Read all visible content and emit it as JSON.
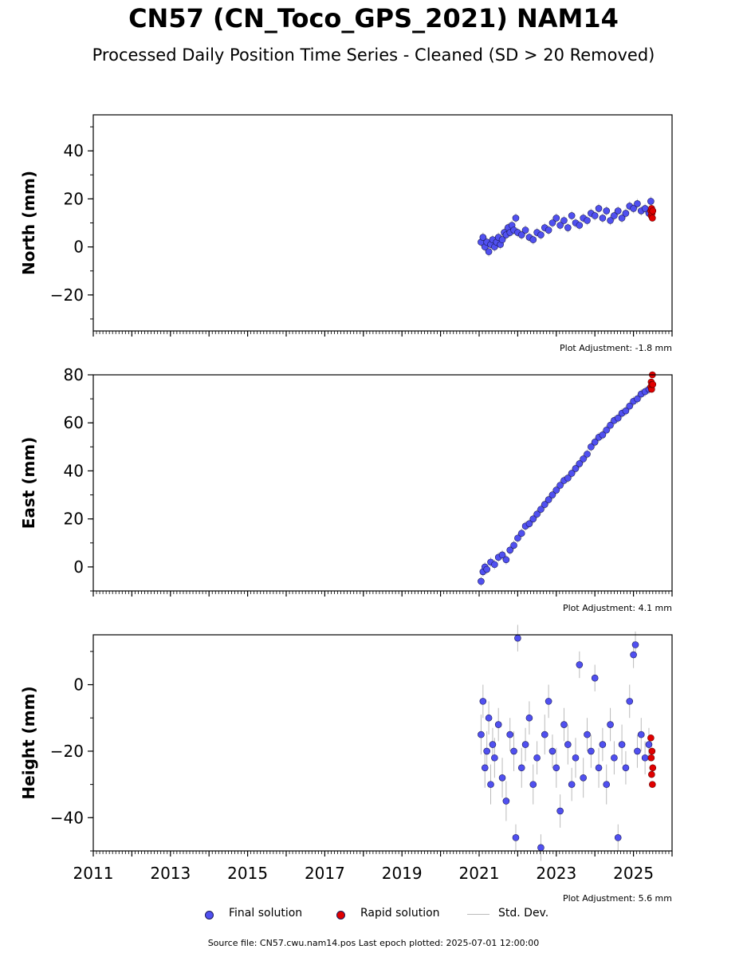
{
  "title": "CN57 (CN_Toco_GPS_2021) NAM14",
  "subtitle": "Processed Daily Position Time Series - Cleaned (SD > 20 Removed)",
  "legend": {
    "final": "Final solution",
    "rapid": "Rapid solution",
    "std": "Std. Dev."
  },
  "footer": "Source file: CN57.cwu.nam14.pos  Last epoch plotted: 2025-07-01 12:00:00",
  "colors": {
    "final_fill": "#5050f0",
    "rapid_fill": "#e00000",
    "std_line": "#bbbbbb",
    "marker_edge": "#1a1a5a"
  },
  "chart_data": [
    {
      "type": "scatter",
      "ylabel": "North (mm)",
      "xlim": [
        2011.0,
        2026.0
      ],
      "ylim": [
        -35,
        55
      ],
      "yticks": [
        -20,
        0,
        20,
        40
      ],
      "xticks": [
        2011,
        2013,
        2015,
        2017,
        2019,
        2021,
        2023,
        2025
      ],
      "show_xticklabels": false,
      "adjustment": "Plot Adjustment: -1.8 mm",
      "final": {
        "x": [
          2021.05,
          2021.1,
          2021.15,
          2021.2,
          2021.25,
          2021.3,
          2021.35,
          2021.4,
          2021.45,
          2021.5,
          2021.55,
          2021.6,
          2021.65,
          2021.7,
          2021.75,
          2021.8,
          2021.85,
          2021.9,
          2021.95,
          2022.0,
          2022.1,
          2022.2,
          2022.3,
          2022.4,
          2022.5,
          2022.6,
          2022.7,
          2022.8,
          2022.9,
          2023.0,
          2023.1,
          2023.2,
          2023.3,
          2023.4,
          2023.5,
          2023.6,
          2023.7,
          2023.8,
          2023.9,
          2024.0,
          2024.1,
          2024.2,
          2024.3,
          2024.4,
          2024.5,
          2024.6,
          2024.7,
          2024.8,
          2024.9,
          2025.0,
          2025.1,
          2025.2,
          2025.3,
          2025.4,
          2025.45
        ],
        "y": [
          2,
          4,
          0,
          2,
          -2,
          1,
          3,
          0,
          2,
          4,
          1,
          3,
          6,
          5,
          8,
          6,
          9,
          7,
          12,
          6,
          5,
          7,
          4,
          3,
          6,
          5,
          8,
          7,
          10,
          12,
          9,
          11,
          8,
          13,
          10,
          9,
          12,
          11,
          14,
          13,
          16,
          12,
          15,
          11,
          13,
          15,
          12,
          14,
          17,
          16,
          18,
          15,
          16,
          14,
          19
        ],
        "std": [
          2,
          2,
          2,
          2,
          2,
          2,
          2,
          2,
          2,
          2,
          2,
          2,
          2,
          2,
          2,
          2,
          2,
          2,
          2,
          2,
          2,
          2,
          2,
          2,
          2,
          2,
          2,
          2,
          2,
          2,
          2,
          2,
          2,
          2,
          2,
          2,
          2,
          2,
          2,
          2,
          2,
          2,
          2,
          2,
          2,
          2,
          2,
          2,
          2,
          2,
          2,
          2,
          2,
          2,
          2
        ]
      },
      "rapid": {
        "x": [
          2025.45,
          2025.46,
          2025.47,
          2025.48,
          2025.49,
          2025.5
        ],
        "y": [
          15,
          13,
          16,
          14,
          12,
          15
        ]
      }
    },
    {
      "type": "scatter",
      "ylabel": "East (mm)",
      "xlim": [
        2011.0,
        2026.0
      ],
      "ylim": [
        -10,
        80
      ],
      "yticks": [
        0,
        20,
        40,
        60,
        80
      ],
      "xticks": [
        2011,
        2013,
        2015,
        2017,
        2019,
        2021,
        2023,
        2025
      ],
      "show_xticklabels": false,
      "adjustment": "Plot Adjustment: 4.1 mm",
      "final": {
        "x": [
          2021.05,
          2021.1,
          2021.15,
          2021.2,
          2021.3,
          2021.4,
          2021.5,
          2021.6,
          2021.7,
          2021.8,
          2021.9,
          2022.0,
          2022.1,
          2022.2,
          2022.3,
          2022.4,
          2022.5,
          2022.6,
          2022.7,
          2022.8,
          2022.9,
          2023.0,
          2023.1,
          2023.2,
          2023.3,
          2023.4,
          2023.5,
          2023.6,
          2023.7,
          2023.8,
          2023.9,
          2024.0,
          2024.1,
          2024.2,
          2024.3,
          2024.4,
          2024.5,
          2024.6,
          2024.7,
          2024.8,
          2024.9,
          2025.0,
          2025.1,
          2025.2,
          2025.3,
          2025.4
        ],
        "y": [
          -6,
          -2,
          0,
          -1,
          2,
          1,
          4,
          5,
          3,
          7,
          9,
          12,
          14,
          17,
          18,
          20,
          22,
          24,
          26,
          28,
          30,
          32,
          34,
          36,
          37,
          39,
          41,
          43,
          45,
          47,
          50,
          52,
          54,
          55,
          57,
          59,
          61,
          62,
          64,
          65,
          67,
          69,
          70,
          72,
          73,
          74
        ],
        "std": [
          2,
          2,
          2,
          2,
          2,
          2,
          2,
          2,
          2,
          2,
          2,
          2,
          2,
          2,
          2,
          2,
          2,
          2,
          2,
          2,
          2,
          2,
          2,
          2,
          2,
          2,
          2,
          2,
          2,
          2,
          2,
          2,
          2,
          2,
          2,
          2,
          2,
          2,
          2,
          2,
          2,
          2,
          2,
          2,
          2,
          2
        ]
      },
      "rapid": {
        "x": [
          2025.45,
          2025.46,
          2025.47,
          2025.48,
          2025.49,
          2025.5
        ],
        "y": [
          75,
          77,
          74,
          76,
          80,
          76
        ]
      }
    },
    {
      "type": "scatter",
      "ylabel": "Height (mm)",
      "xlim": [
        2011.0,
        2026.0
      ],
      "ylim": [
        -50,
        15
      ],
      "yticks": [
        -40,
        -20,
        0
      ],
      "xticks": [
        2011,
        2013,
        2015,
        2017,
        2019,
        2021,
        2023,
        2025
      ],
      "xticklabels": [
        "2011",
        "2013",
        "2015",
        "2017",
        "2019",
        "2021",
        "2023",
        "2025"
      ],
      "show_xticklabels": true,
      "adjustment": "Plot Adjustment: 5.6 mm",
      "final": {
        "x": [
          2021.05,
          2021.1,
          2021.15,
          2021.2,
          2021.25,
          2021.3,
          2021.35,
          2021.4,
          2021.5,
          2021.6,
          2021.7,
          2021.8,
          2021.9,
          2021.95,
          2022.0,
          2022.1,
          2022.2,
          2022.3,
          2022.4,
          2022.5,
          2022.6,
          2022.7,
          2022.8,
          2022.9,
          2023.0,
          2023.1,
          2023.2,
          2023.3,
          2023.4,
          2023.5,
          2023.6,
          2023.7,
          2023.8,
          2023.9,
          2024.0,
          2024.1,
          2024.2,
          2024.3,
          2024.4,
          2024.5,
          2024.6,
          2024.7,
          2024.8,
          2024.9,
          2025.0,
          2025.05,
          2025.1,
          2025.2,
          2025.3,
          2025.4
        ],
        "y": [
          -15,
          -5,
          -25,
          -20,
          -10,
          -30,
          -18,
          -22,
          -12,
          -28,
          -35,
          -15,
          -20,
          -46,
          14,
          -25,
          -18,
          -10,
          -30,
          -22,
          -49,
          -15,
          -5,
          -20,
          -25,
          -38,
          -12,
          -18,
          -30,
          -22,
          6,
          -28,
          -15,
          -20,
          2,
          -25,
          -18,
          -30,
          -12,
          -22,
          -46,
          -18,
          -25,
          -5,
          9,
          12,
          -20,
          -15,
          -22,
          -18
        ],
        "std": [
          6,
          5,
          6,
          6,
          5,
          6,
          5,
          6,
          5,
          6,
          6,
          5,
          6,
          4,
          4,
          6,
          5,
          5,
          6,
          5,
          4,
          6,
          5,
          5,
          6,
          5,
          5,
          6,
          5,
          6,
          4,
          6,
          5,
          5,
          4,
          6,
          5,
          6,
          5,
          5,
          4,
          6,
          5,
          5,
          4,
          4,
          5,
          5,
          5,
          5
        ]
      },
      "rapid": {
        "x": [
          2025.45,
          2025.46,
          2025.47,
          2025.48,
          2025.49,
          2025.5
        ],
        "y": [
          -16,
          -22,
          -27,
          -20,
          -30,
          -25
        ]
      }
    }
  ]
}
